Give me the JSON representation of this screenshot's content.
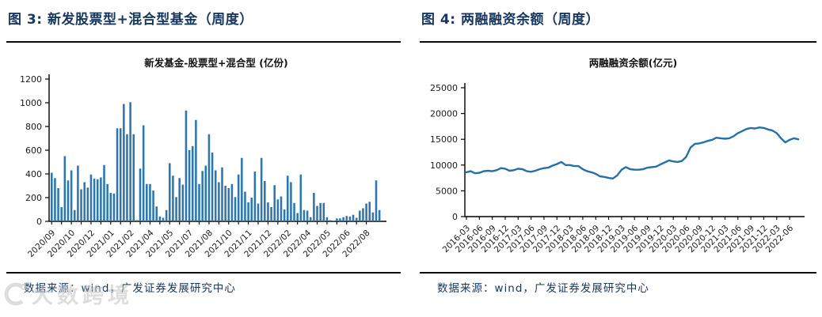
{
  "figures": [
    {
      "heading": "图 3: 新发股票型+混合型基金（周度）",
      "source": "数据来源：wind，广发证券发展研究中心"
    },
    {
      "heading": "图 4: 两融融资余额（周度）",
      "source": "数据来源：wind，广发证券发展研究中心"
    }
  ],
  "watermark": {
    "text": "大数跨境"
  },
  "colors": {
    "heading": "#17375E",
    "bar": "#2E77AE",
    "line": "#2470A8",
    "axis": "#000000",
    "tick_label": "#1a1a1a",
    "chart_title": "#111111",
    "source_text": "#17375E",
    "watermark_gray": "#c2c2c2"
  },
  "chart_data": [
    {
      "type": "bar",
      "title": "新发基金-股票型+混合型 (亿份)",
      "xlabel": "",
      "ylabel": "",
      "unit": "亿份",
      "frequency": "weekly",
      "x_start": "2020/09",
      "x_end": "2022/08",
      "ylim": [
        0,
        1200
      ],
      "yticks": [
        0,
        200,
        400,
        600,
        800,
        1000,
        1200
      ],
      "grid": false,
      "legend": null,
      "x_tick_every_n_bars": 6,
      "x_tick_labels": [
        "2020/09",
        "2020/10",
        "2020/12",
        "2021/01",
        "2021/02",
        "2021/04",
        "2021/05",
        "2021/07",
        "2021/08",
        "2021/10",
        "2021/11",
        "2021/12",
        "2022/02",
        "2022/04",
        "2022/05",
        "2022/06",
        "2022/08"
      ],
      "values": [
        410,
        365,
        280,
        120,
        550,
        345,
        430,
        95,
        470,
        270,
        330,
        285,
        395,
        360,
        355,
        370,
        475,
        315,
        240,
        235,
        785,
        785,
        990,
        735,
        1005,
        735,
        10,
        445,
        810,
        315,
        315,
        260,
        125,
        40,
        30,
        95,
        490,
        385,
        205,
        365,
        310,
        935,
        600,
        635,
        855,
        315,
        425,
        470,
        735,
        580,
        430,
        330,
        455,
        300,
        280,
        315,
        205,
        395,
        535,
        250,
        160,
        200,
        420,
        150,
        535,
        340,
        160,
        120,
        305,
        185,
        210,
        100,
        385,
        330,
        155,
        70,
        395,
        95,
        90,
        35,
        240,
        130,
        155,
        155,
        35,
        10,
        5,
        25,
        25,
        35,
        45,
        40,
        55,
        30,
        90,
        110,
        150,
        165,
        75,
        345,
        95
      ]
    },
    {
      "type": "line",
      "title": "两融融资余额(亿元)",
      "xlabel": "",
      "ylabel": "",
      "unit": "亿元",
      "frequency": "monthly",
      "x_start": "2016-03",
      "x_end": "2022-08",
      "ylim": [
        0,
        25000
      ],
      "yticks": [
        0,
        5000,
        10000,
        15000,
        20000,
        25000
      ],
      "grid": false,
      "legend": null,
      "x_tick_every_n_points": 3,
      "x_tick_labels": [
        "2016-03",
        "2016-06",
        "2016-09",
        "2016-12",
        "2017-03",
        "2017-06",
        "2017-09",
        "2017-12",
        "2018-03",
        "2018-06",
        "2018-09",
        "2018-12",
        "2019-03",
        "2019-06",
        "2019-09",
        "2019-12",
        "2020-03",
        "2020-06",
        "2020-09",
        "2020-12",
        "2021-03",
        "2021-06",
        "2021-09",
        "2021-12",
        "2022-03",
        "2022-06"
      ],
      "values": [
        8600,
        8800,
        8400,
        8500,
        8800,
        8900,
        8800,
        9000,
        9400,
        9300,
        8900,
        9000,
        9300,
        9200,
        8800,
        8700,
        8900,
        9200,
        9400,
        9500,
        9900,
        10200,
        10600,
        10000,
        10000,
        9800,
        9800,
        9200,
        8800,
        8600,
        8300,
        7800,
        7700,
        7500,
        7400,
        8000,
        9100,
        9600,
        9200,
        9100,
        9100,
        9200,
        9500,
        9600,
        9700,
        10100,
        10500,
        10900,
        10700,
        10600,
        10800,
        11600,
        13400,
        14100,
        14200,
        14400,
        14700,
        14900,
        15300,
        15200,
        15100,
        15200,
        15600,
        16200,
        16600,
        17000,
        17200,
        17100,
        17300,
        17200,
        16900,
        16700,
        16200,
        15200,
        14400,
        14900,
        15200,
        15000
      ]
    }
  ]
}
